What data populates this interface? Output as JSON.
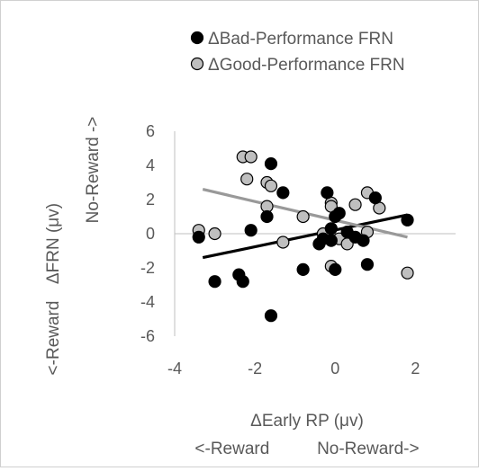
{
  "chart_data": {
    "type": "scatter",
    "xlabel": "ΔEarly RP (μv)",
    "xlabel_sub": "<-Reward          No-Reward->",
    "ylabel": "ΔFRN (μv)",
    "ylabel_top": "No-Reward ->",
    "ylabel_bottom": "<-Reward",
    "xlim": [
      -4,
      3
    ],
    "ylim": [
      -6,
      6
    ],
    "x_ticks": [
      -4,
      -2,
      0,
      2
    ],
    "y_ticks": [
      -6,
      -4,
      -2,
      0,
      2,
      4,
      6
    ],
    "grid": false,
    "legend_position": "top",
    "series": [
      {
        "name": "ΔBad-Performance FRN",
        "color": "#000000",
        "trendline": [
          [
            -3.3,
            -1.4
          ],
          [
            1.8,
            1.1
          ]
        ],
        "points": [
          [
            -3.4,
            -0.2
          ],
          [
            -3.0,
            -2.8
          ],
          [
            -2.4,
            -2.4
          ],
          [
            -2.3,
            -2.8
          ],
          [
            -2.1,
            0.2
          ],
          [
            -1.6,
            4.1
          ],
          [
            -1.7,
            1.0
          ],
          [
            -1.6,
            -4.8
          ],
          [
            -1.3,
            2.4
          ],
          [
            -0.8,
            -2.1
          ],
          [
            -0.4,
            -0.6
          ],
          [
            -0.3,
            -0.3
          ],
          [
            -0.2,
            2.4
          ],
          [
            -0.1,
            0.3
          ],
          [
            0.0,
            1.0
          ],
          [
            0.1,
            1.2
          ],
          [
            -0.1,
            -0.4
          ],
          [
            0.0,
            -2.1
          ],
          [
            0.3,
            0.1
          ],
          [
            0.5,
            -0.2
          ],
          [
            0.7,
            -0.4
          ],
          [
            0.8,
            -1.8
          ],
          [
            1.0,
            2.1
          ],
          [
            1.8,
            0.8
          ]
        ]
      },
      {
        "name": "ΔGood-Performance FRN",
        "color": "#bfbfbf",
        "trendline": [
          [
            -3.3,
            2.6
          ],
          [
            1.8,
            -0.2
          ]
        ],
        "points": [
          [
            -3.4,
            0.2
          ],
          [
            -3.0,
            0.0
          ],
          [
            -2.3,
            4.5
          ],
          [
            -2.1,
            4.5
          ],
          [
            -2.2,
            3.2
          ],
          [
            -1.7,
            3.0
          ],
          [
            -1.6,
            2.8
          ],
          [
            -1.7,
            1.6
          ],
          [
            -1.3,
            -0.5
          ],
          [
            -0.8,
            1.0
          ],
          [
            -0.3,
            0.0
          ],
          [
            -0.1,
            1.8
          ],
          [
            -0.1,
            1.6
          ],
          [
            -0.1,
            -1.9
          ],
          [
            0.1,
            -0.3
          ],
          [
            0.3,
            -0.6
          ],
          [
            0.5,
            1.7
          ],
          [
            0.8,
            2.4
          ],
          [
            0.8,
            0.1
          ],
          [
            1.1,
            1.5
          ],
          [
            1.8,
            -2.3
          ]
        ]
      }
    ]
  }
}
